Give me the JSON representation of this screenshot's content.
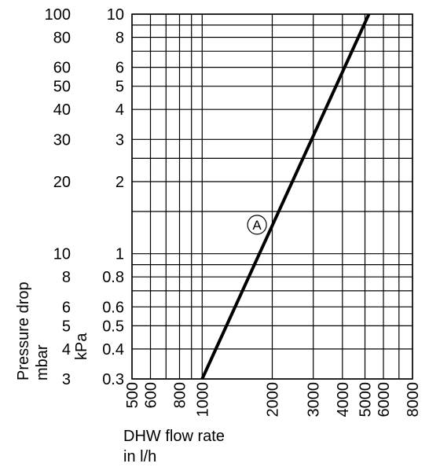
{
  "chart_data": {
    "type": "line",
    "x_scale": "log",
    "y_scale": "log",
    "xlim": [
      500,
      8000
    ],
    "ylim_kpa": [
      0.3,
      10
    ],
    "ylim_mbar": [
      3,
      100
    ],
    "x_ticks": [
      "500",
      "600",
      "800",
      "1000",
      "2000",
      "3000",
      "4000",
      "5000",
      "6000",
      "8000"
    ],
    "x_tick_values": [
      500,
      600,
      800,
      1000,
      2000,
      3000,
      4000,
      5000,
      6000,
      8000
    ],
    "y_ticks_kpa": [
      "10",
      "8",
      "6",
      "5",
      "4",
      "3",
      "2",
      "1",
      "0.8",
      "0.6",
      "0.5",
      "0.4",
      "0.3"
    ],
    "y_tick_values_kpa": [
      10,
      8,
      6,
      5,
      4,
      3,
      2,
      1,
      0.8,
      0.6,
      0.5,
      0.4,
      0.3
    ],
    "y_ticks_mbar": [
      "100",
      "80",
      "60",
      "50",
      "40",
      "30",
      "20",
      "10",
      "8",
      "6",
      "5",
      "4",
      "3"
    ],
    "y_tick_values_mbar": [
      100,
      80,
      60,
      50,
      40,
      30,
      20,
      10,
      8,
      6,
      5,
      4,
      3
    ],
    "grid": true,
    "x_grid": [
      500,
      600,
      700,
      800,
      900,
      1000,
      2000,
      3000,
      4000,
      5000,
      6000,
      7000,
      8000
    ],
    "y_grid_kpa": [
      0.3,
      0.4,
      0.5,
      0.6,
      0.7,
      0.8,
      0.9,
      1,
      1.5,
      2,
      2.5,
      3,
      4,
      5,
      6,
      7,
      8,
      9,
      10
    ],
    "xlabel": [
      "DHW flow rate",
      "in l/h"
    ],
    "ylabel_mbar": [
      "Pressure drop",
      "mbar"
    ],
    "ylabel_kpa": "kPa",
    "series": [
      {
        "name": "A",
        "x": [
          1000,
          5200
        ],
        "y": [
          0.3,
          10
        ]
      }
    ],
    "annotations": [
      {
        "text": "A",
        "x": 1720,
        "y": 1.32
      }
    ]
  }
}
